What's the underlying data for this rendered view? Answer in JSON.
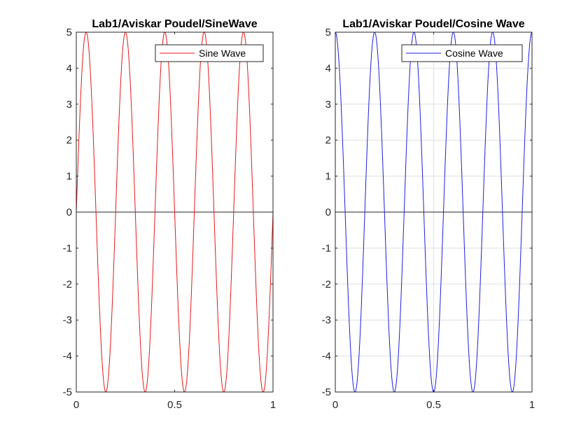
{
  "chart_data": [
    {
      "type": "line",
      "title": "Lab1/Aviskar Poudel/SineWave",
      "xlabel": "",
      "ylabel": "",
      "xlim": [
        0,
        1
      ],
      "ylim": [
        -5,
        5
      ],
      "xticks": [
        0,
        0.5,
        1
      ],
      "xtick_labels": [
        "0",
        "0.5",
        "1"
      ],
      "yticks": [
        -5,
        -4,
        -3,
        -2,
        -1,
        0,
        1,
        2,
        3,
        4,
        5
      ],
      "ytick_labels": [
        "-5",
        "-4",
        "-3",
        "-2",
        "-1",
        "0",
        "1",
        "2",
        "3",
        "4",
        "5"
      ],
      "grid": false,
      "legend": "top-right",
      "zero_line": true,
      "series": [
        {
          "name": "Sine Wave",
          "color": "#e31a1c",
          "function": "sine",
          "amplitude": 5,
          "frequency": 5,
          "x": [
            0,
            0.05,
            0.1,
            0.15,
            0.2,
            0.25,
            0.3,
            0.35,
            0.4,
            0.45,
            0.5,
            0.55,
            0.6,
            0.65,
            0.7,
            0.75,
            0.8,
            0.85,
            0.9,
            0.95,
            1
          ],
          "y": [
            0,
            5,
            0,
            -5,
            0,
            5,
            0,
            -5,
            0,
            5,
            0,
            -5,
            0,
            5,
            0,
            -5,
            0,
            5,
            0,
            -5,
            0
          ]
        }
      ]
    },
    {
      "type": "line",
      "title": "Lab1/Aviskar Poudel/Cosine Wave",
      "xlabel": "",
      "ylabel": "",
      "xlim": [
        0,
        1
      ],
      "ylim": [
        -5,
        5
      ],
      "xticks": [
        0,
        0.5,
        1
      ],
      "xtick_labels": [
        "0",
        "0.5",
        "1"
      ],
      "yticks": [
        -5,
        -4,
        -3,
        -2,
        -1,
        0,
        1,
        2,
        3,
        4,
        5
      ],
      "ytick_labels": [
        "-5",
        "-4",
        "-3",
        "-2",
        "-1",
        "0",
        "1",
        "2",
        "3",
        "4",
        "5"
      ],
      "grid": true,
      "legend": "top-right",
      "zero_line": true,
      "series": [
        {
          "name": "Cosine Wave",
          "color": "#1f1fe0",
          "function": "cosine",
          "amplitude": 5,
          "frequency": 5,
          "x": [
            0,
            0.05,
            0.1,
            0.15,
            0.2,
            0.25,
            0.3,
            0.35,
            0.4,
            0.45,
            0.5,
            0.55,
            0.6,
            0.65,
            0.7,
            0.75,
            0.8,
            0.85,
            0.9,
            0.95,
            1
          ],
          "y": [
            5,
            0,
            -5,
            0,
            5,
            0,
            -5,
            0,
            5,
            0,
            -5,
            0,
            5,
            0,
            -5,
            0,
            5,
            0,
            -5,
            0,
            5
          ]
        }
      ]
    }
  ]
}
